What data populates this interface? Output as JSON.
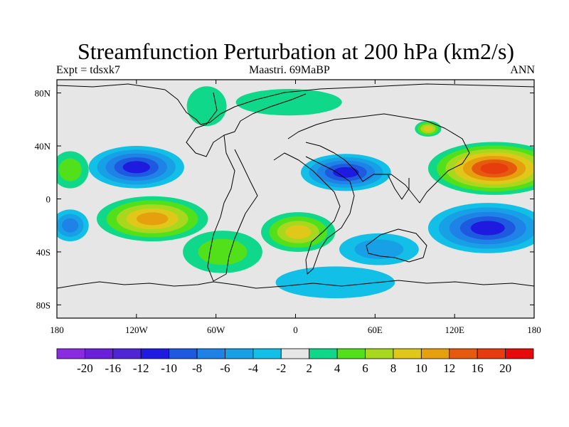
{
  "title": "Streamfunction Perturbation at 200 hPa (km2/s)",
  "left_string": "Expt = tdsxk7",
  "center_string": "Maastri.  69MaBP",
  "right_string": "ANN",
  "axes": {
    "lon_ticks": [
      {
        "value": -180,
        "label": "180"
      },
      {
        "value": -120,
        "label": "120W"
      },
      {
        "value": -60,
        "label": "60W"
      },
      {
        "value": 0,
        "label": "0"
      },
      {
        "value": 60,
        "label": "60E"
      },
      {
        "value": 120,
        "label": "120E"
      },
      {
        "value": 180,
        "label": "180"
      }
    ],
    "lat_ticks": [
      {
        "value": 80,
        "label": "80N"
      },
      {
        "value": 40,
        "label": "40N"
      },
      {
        "value": 0,
        "label": "0"
      },
      {
        "value": -40,
        "label": "40S"
      },
      {
        "value": -80,
        "label": "80S"
      }
    ],
    "lon_range": [
      -180,
      180
    ],
    "lat_range": [
      -90,
      90
    ]
  },
  "colorbar": {
    "colors": [
      "#8a2be2",
      "#6a1fd8",
      "#4f26d6",
      "#1f1ae0",
      "#1e5ae0",
      "#1e82e6",
      "#18a0e6",
      "#12bfe6",
      "#e6e6e6",
      "#10d88a",
      "#52e01a",
      "#a8d81e",
      "#e0c81a",
      "#e6a00e",
      "#e65a0e",
      "#e63c0e",
      "#e60a0a"
    ],
    "labels": [
      "-20",
      "-16",
      "-12",
      "-10",
      "-8",
      "-6",
      "-4",
      "-2",
      "2",
      "4",
      "6",
      "8",
      "10",
      "12",
      "16",
      "20"
    ]
  },
  "map_data": {
    "land_color": "#e6e6e6",
    "anomalies": [
      {
        "lon": -120,
        "lat": 24,
        "rx": 36,
        "ry": 16,
        "level": -5
      },
      {
        "lon": -170,
        "lat": 22,
        "rx": 14,
        "ry": 14,
        "level": 2
      },
      {
        "lon": 38,
        "lat": 20,
        "rx": 34,
        "ry": 14,
        "level": -5
      },
      {
        "lon": 150,
        "lat": 23,
        "rx": 50,
        "ry": 20,
        "level": 7
      },
      {
        "lon": 100,
        "lat": 53,
        "rx": 10,
        "ry": 6,
        "level": 4
      },
      {
        "lon": -108,
        "lat": -15,
        "rx": 42,
        "ry": 17,
        "level": 5
      },
      {
        "lon": 2,
        "lat": -25,
        "rx": 28,
        "ry": 15,
        "level": 4
      },
      {
        "lon": 145,
        "lat": -22,
        "rx": 45,
        "ry": 19,
        "level": -5
      },
      {
        "lon": -170,
        "lat": -20,
        "rx": 14,
        "ry": 12,
        "level": -3
      },
      {
        "lon": 30,
        "lat": -63,
        "rx": 45,
        "ry": 12,
        "level": -1
      },
      {
        "lon": -55,
        "lat": -40,
        "rx": 30,
        "ry": 16,
        "level": 2
      },
      {
        "lon": -5,
        "lat": 73,
        "rx": 40,
        "ry": 10,
        "level": 1
      },
      {
        "lon": -67,
        "lat": 70,
        "rx": 15,
        "ry": 15,
        "level": 1
      },
      {
        "lon": 63,
        "lat": -38,
        "rx": 30,
        "ry": 12,
        "level": -2
      }
    ]
  }
}
